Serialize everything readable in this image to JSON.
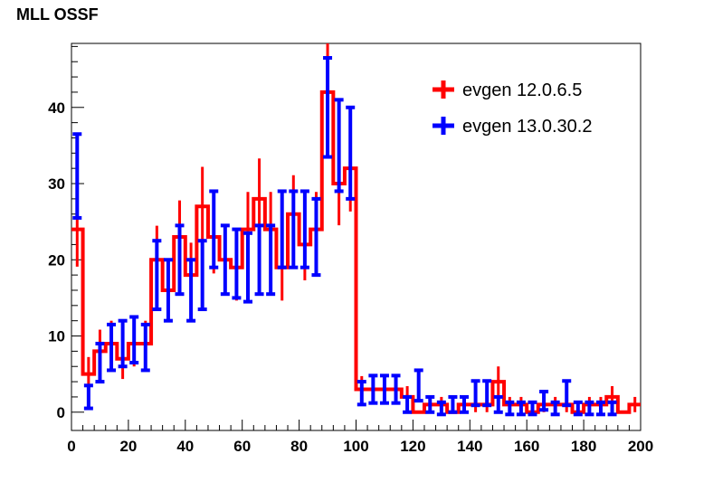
{
  "chart_data": {
    "type": "histogram",
    "title": "MLL OSSF",
    "xlabel": "",
    "ylabel": "",
    "xlim": [
      0,
      200
    ],
    "ylim": [
      -2.4,
      48.4
    ],
    "x_ticks": [
      0,
      20,
      40,
      60,
      80,
      100,
      120,
      140,
      160,
      180,
      200
    ],
    "y_ticks": [
      0,
      10,
      20,
      30,
      40
    ],
    "grid": false,
    "legend_position": "top-right",
    "bin_width": 4,
    "series": [
      {
        "name": "evgen 12.0.6.5",
        "color": "#ff0000",
        "style": "histogram",
        "bin_centers": [
          2,
          6,
          10,
          14,
          18,
          22,
          26,
          30,
          34,
          38,
          42,
          46,
          50,
          54,
          58,
          62,
          66,
          70,
          74,
          78,
          82,
          86,
          90,
          94,
          98,
          102,
          106,
          110,
          114,
          118,
          122,
          126,
          130,
          134,
          138,
          142,
          146,
          150,
          154,
          158,
          162,
          166,
          170,
          174,
          178,
          182,
          186,
          190,
          194,
          198
        ],
        "values": [
          24,
          5,
          8,
          9,
          7,
          9,
          9,
          20,
          16,
          23,
          18,
          27,
          23,
          20,
          19,
          24,
          28,
          24,
          19,
          26,
          22,
          24,
          42,
          30,
          32,
          3,
          3,
          3,
          3,
          2,
          0,
          1,
          1,
          0,
          1,
          1,
          1,
          4,
          1,
          1,
          0,
          1,
          1,
          1,
          0,
          1,
          1,
          2,
          0,
          1
        ]
      },
      {
        "name": "evgen 13.0.30.2",
        "color": "#0000ff",
        "style": "errorbars",
        "bin_centers": [
          2,
          6,
          10,
          14,
          18,
          22,
          26,
          30,
          34,
          38,
          42,
          46,
          50,
          54,
          58,
          62,
          66,
          70,
          74,
          78,
          82,
          86,
          90,
          94,
          98,
          102,
          106,
          110,
          114,
          118,
          122,
          126,
          130,
          134,
          138,
          142,
          146,
          150,
          154,
          158,
          162,
          166,
          170,
          174,
          178,
          182,
          186,
          190,
          194,
          198
        ],
        "values": [
          31,
          2,
          6.5,
          8.5,
          9,
          9.5,
          8.5,
          18,
          16,
          20,
          16,
          18,
          24,
          20,
          19.5,
          19,
          20,
          20,
          24,
          24,
          24,
          23,
          40,
          35,
          34,
          2.5,
          3,
          3,
          3,
          1,
          3.5,
          1,
          0.5,
          1,
          1,
          2.5,
          2.5,
          1,
          0.5,
          0.5,
          0.5,
          1.5,
          0.5,
          2.5,
          0.5,
          0.5,
          0.5,
          0.5,
          0,
          0
        ],
        "errors": [
          5.5,
          1.5,
          2.5,
          3,
          3,
          3,
          3,
          4.5,
          4,
          4.5,
          4,
          4.5,
          5,
          4.5,
          4.5,
          4.5,
          4.5,
          4.5,
          5,
          5,
          5,
          5,
          6.5,
          6,
          6,
          1.5,
          1.8,
          1.8,
          1.8,
          1,
          2,
          1,
          0.8,
          1,
          1,
          1.6,
          1.6,
          1,
          0.8,
          0.8,
          0.8,
          1.2,
          0.8,
          1.6,
          0.8,
          0.8,
          0.8,
          0.8,
          0,
          0
        ]
      }
    ]
  },
  "legend": {
    "entries": [
      {
        "label": "evgen 12.0.6.5",
        "color": "#ff0000"
      },
      {
        "label": "evgen 13.0.30.2",
        "color": "#0000ff"
      }
    ]
  }
}
